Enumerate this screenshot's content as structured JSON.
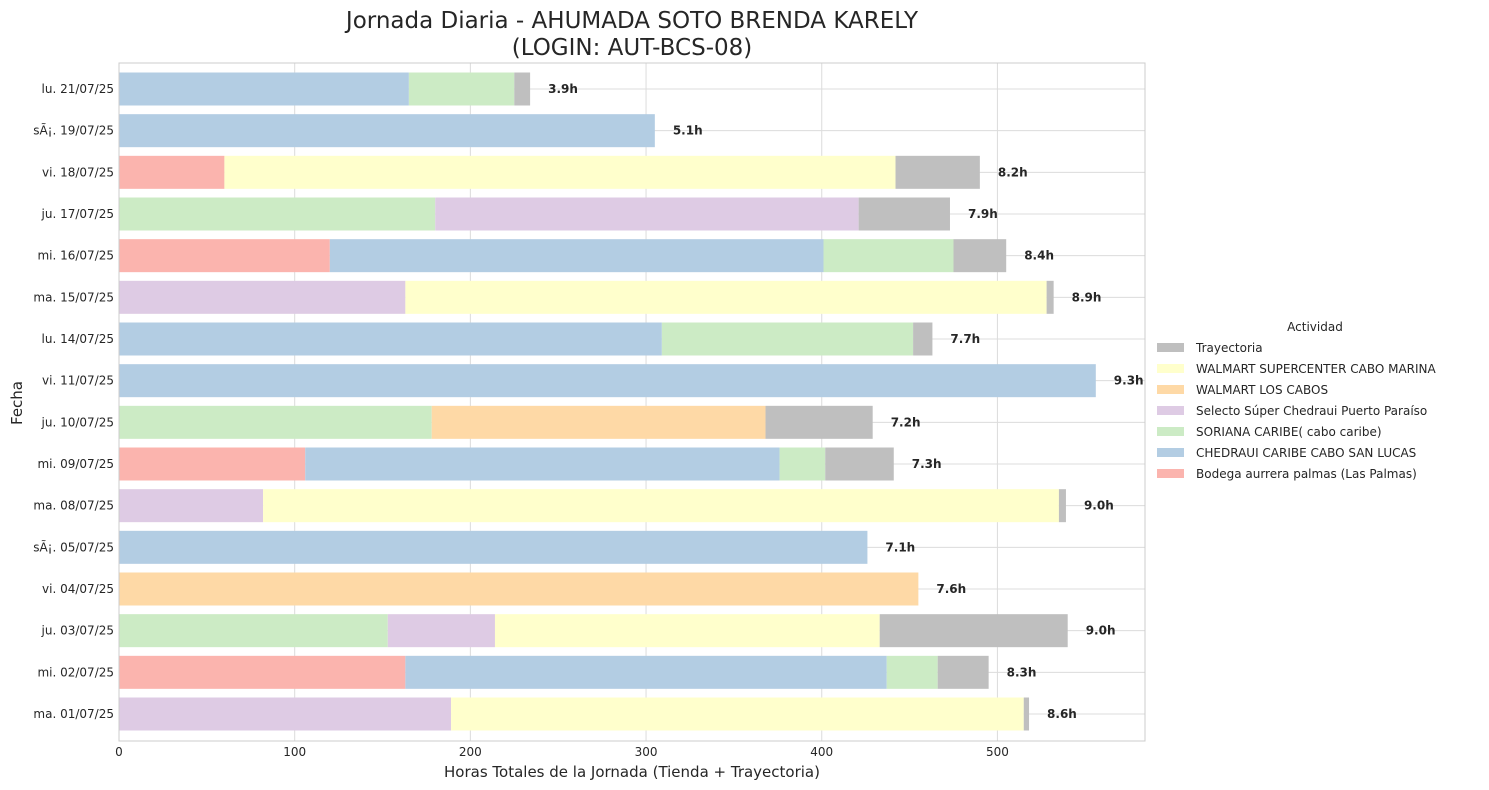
{
  "chart_data": {
    "type": "bar",
    "orientation": "horizontal",
    "stacked": true,
    "title": "Jornada Diaria - AHUMADA SOTO BRENDA KARELY",
    "subtitle": "(LOGIN: AUT-BCS-08)",
    "xlabel": "Horas Totales de la Jornada (Tienda + Trayectoria)",
    "ylabel": "Fecha",
    "xlim": [
      0,
      584
    ],
    "xticks": [
      0,
      100,
      200,
      300,
      400,
      500
    ],
    "grid": true,
    "legend": {
      "title": "Actividad",
      "placement": "right"
    },
    "categories": [
      "lu. 21/07/25",
      "sÃ¡. 19/07/25",
      "vi. 18/07/25",
      "ju. 17/07/25",
      "mi. 16/07/25",
      "ma. 15/07/25",
      "lu. 14/07/25",
      "vi. 11/07/25",
      "ju. 10/07/25",
      "mi. 09/07/25",
      "ma. 08/07/25",
      "sÃ¡. 05/07/25",
      "vi. 04/07/25",
      "ju. 03/07/25",
      "mi. 02/07/25",
      "ma. 01/07/25"
    ],
    "total_labels": [
      "3.9h",
      "5.1h",
      "8.2h",
      "7.9h",
      "8.4h",
      "8.9h",
      "7.7h",
      "9.3h",
      "7.2h",
      "7.3h",
      "9.0h",
      "7.1h",
      "7.6h",
      "9.0h",
      "8.3h",
      "8.6h"
    ],
    "series": [
      {
        "name": "Bodega aurrera palmas (Las Palmas)",
        "color": "#fbb4ae",
        "values": [
          0,
          0,
          60,
          0,
          120,
          0,
          0,
          0,
          0,
          106,
          0,
          0,
          0,
          0,
          163,
          0
        ]
      },
      {
        "name": "SORIANA CARIBE( cabo caribe)",
        "color": "#ccebc5",
        "values": [
          0,
          0,
          0,
          180,
          0,
          0,
          0,
          0,
          178,
          0,
          0,
          0,
          0,
          153,
          0,
          0
        ]
      },
      {
        "name": "Selecto Súper Chedraui Puerto Paraíso",
        "color": "#decbe4",
        "values": [
          0,
          0,
          0,
          0,
          0,
          163,
          0,
          0,
          0,
          0,
          82,
          0,
          0,
          0,
          0,
          189
        ]
      },
      {
        "name": "CHEDRAUI CARIBE CABO SAN LUCAS",
        "color": "#b3cde3",
        "values": [
          165,
          305,
          0,
          0,
          0,
          0,
          309,
          556,
          0,
          0,
          0,
          426,
          0,
          0,
          0,
          0
        ]
      },
      {
        "name": "WALMART LOS CABOS",
        "color": "#fed9a6",
        "values": [
          0,
          0,
          0,
          0,
          0,
          0,
          0,
          0,
          0,
          0,
          0,
          0,
          455,
          0,
          0,
          0
        ]
      },
      {
        "name": "CHEDRAUI CARIBE CABO SAN LUCAS",
        "color": "#b3cde3",
        "values": [
          0,
          0,
          0,
          0,
          281,
          0,
          0,
          0,
          0,
          270,
          0,
          0,
          0,
          0,
          274,
          0
        ]
      },
      {
        "name": "Selecto Súper Chedraui Puerto Paraíso",
        "color": "#decbe4",
        "values": [
          0,
          0,
          0,
          241,
          0,
          0,
          0,
          0,
          0,
          0,
          0,
          0,
          0,
          61,
          0,
          0
        ]
      },
      {
        "name": "WALMART LOS CABOS",
        "color": "#fed9a6",
        "values": [
          0,
          0,
          0,
          0,
          0,
          0,
          0,
          0,
          190,
          0,
          0,
          0,
          0,
          0,
          0,
          0
        ]
      },
      {
        "name": "SORIANA CARIBE( cabo caribe)",
        "color": "#ccebc5",
        "values": [
          60,
          0,
          0,
          0,
          74,
          0,
          143,
          0,
          0,
          26,
          0,
          0,
          0,
          0,
          29,
          0
        ]
      },
      {
        "name": "WALMART SUPERCENTER CABO MARINA",
        "color": "#ffffcc",
        "values": [
          0,
          0,
          382,
          0,
          0,
          365,
          0,
          0,
          0,
          0,
          453,
          0,
          0,
          219,
          0,
          326
        ]
      },
      {
        "name": "Trayectoria",
        "color": "#bfbfbf",
        "values": [
          9,
          0,
          48,
          52,
          30,
          4,
          11,
          0,
          61,
          39,
          4,
          0,
          0,
          107,
          29,
          3
        ]
      }
    ],
    "legend_entries": [
      {
        "name": "Trayectoria",
        "color": "#bfbfbf"
      },
      {
        "name": "WALMART SUPERCENTER CABO MARINA",
        "color": "#ffffcc"
      },
      {
        "name": "WALMART LOS CABOS",
        "color": "#fed9a6"
      },
      {
        "name": "Selecto Súper Chedraui Puerto Paraíso",
        "color": "#decbe4"
      },
      {
        "name": "SORIANA CARIBE( cabo caribe)",
        "color": "#ccebc5"
      },
      {
        "name": "CHEDRAUI CARIBE CABO SAN LUCAS",
        "color": "#b3cde3"
      },
      {
        "name": "Bodega aurrera palmas (Las Palmas)",
        "color": "#fbb4ae"
      }
    ]
  }
}
